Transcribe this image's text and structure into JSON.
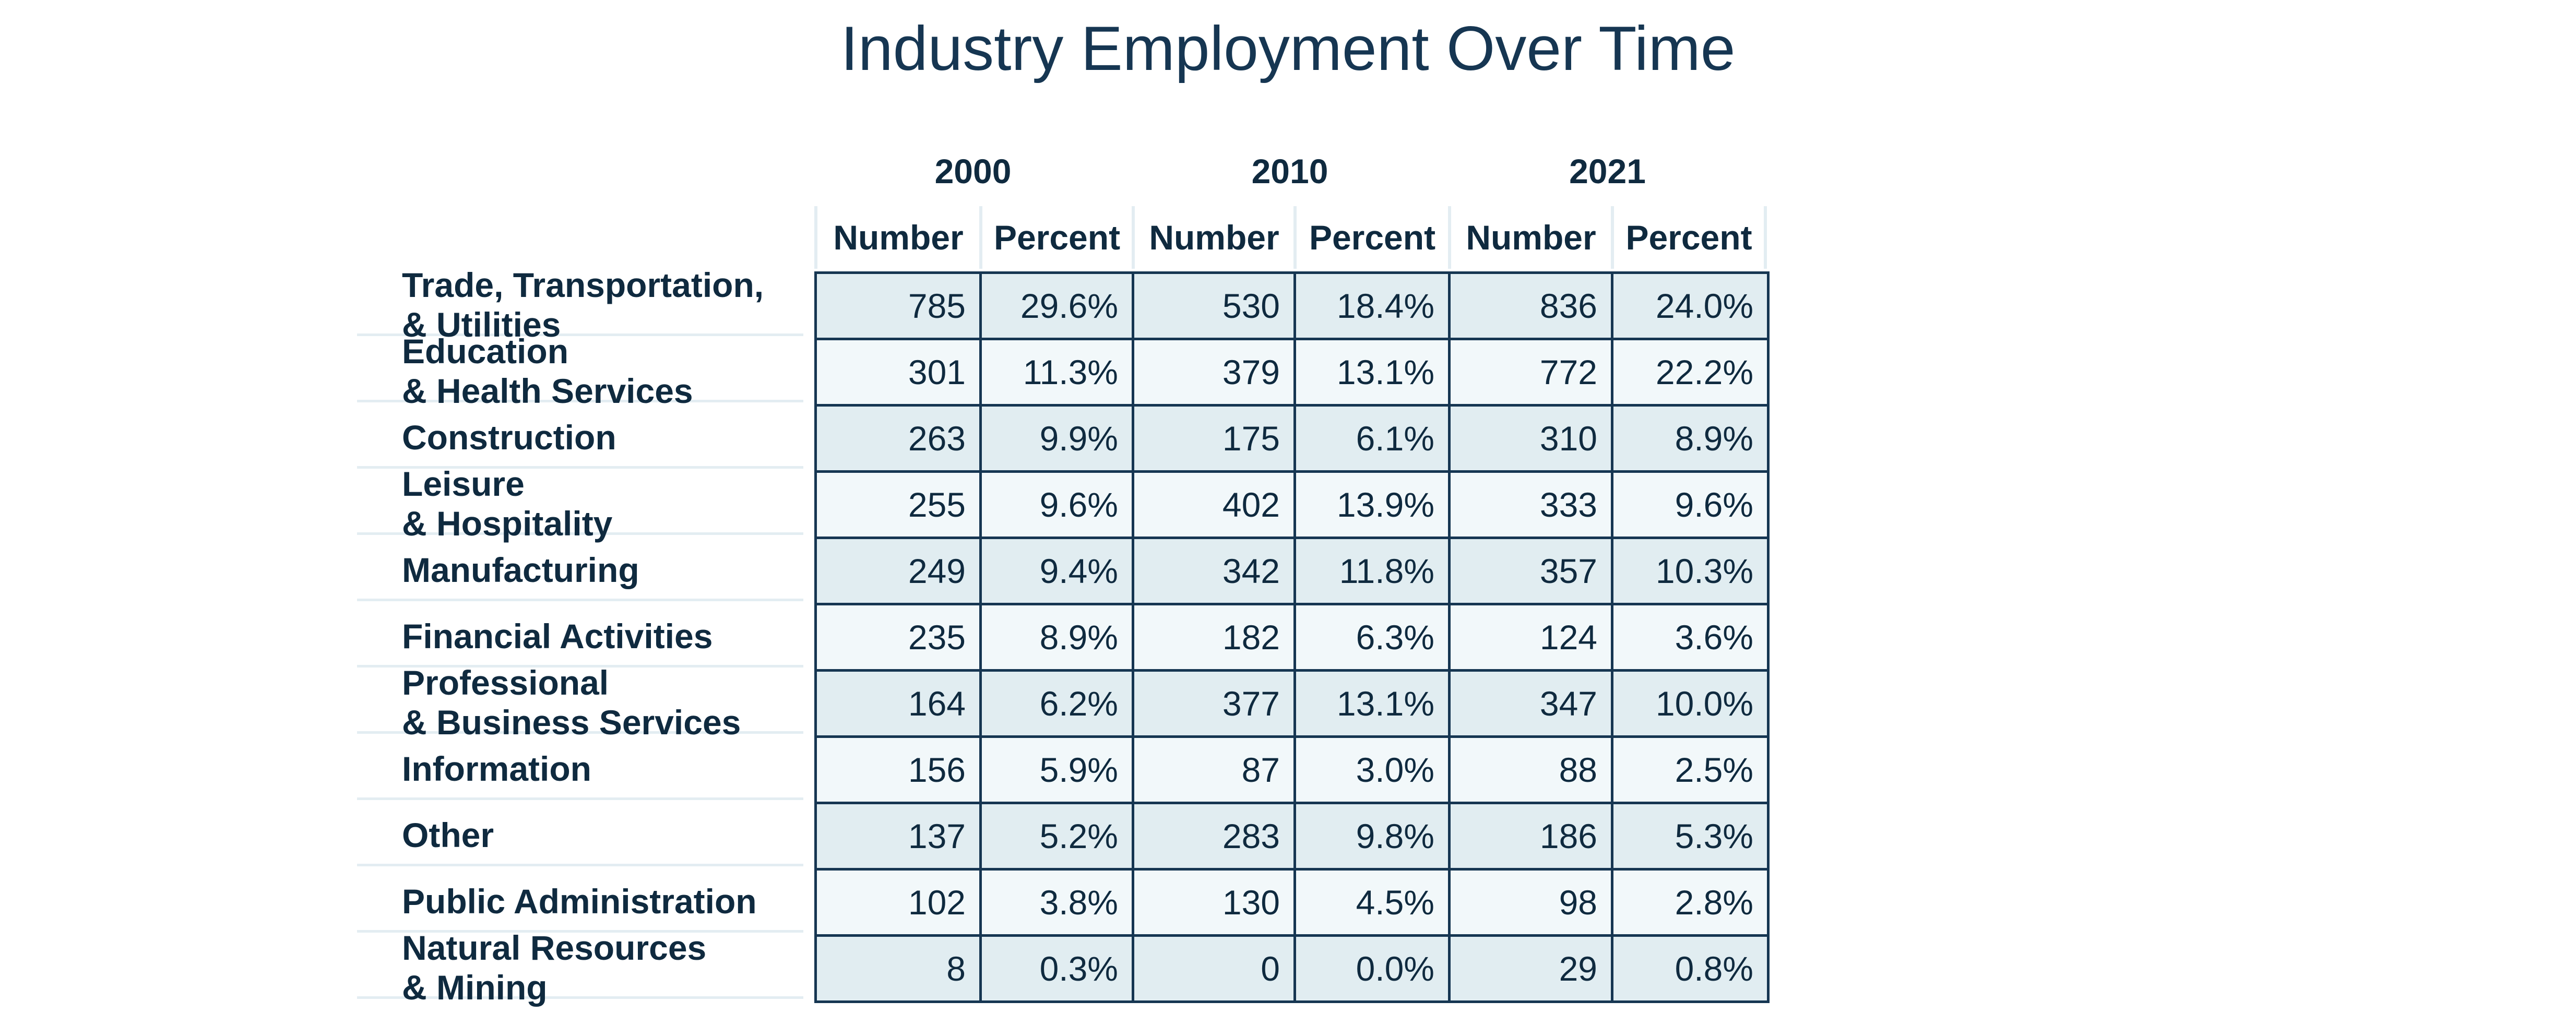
{
  "chart_data": {
    "type": "table",
    "title": "Industry Employment Over Time",
    "years": [
      "2000",
      "2010",
      "2021"
    ],
    "subheaders": [
      "Number",
      "Percent",
      "Number",
      "Percent",
      "Number",
      "Percent"
    ],
    "rows": [
      {
        "category": "Trade, Transportation,\n& Utilities",
        "values": [
          "785",
          "29.6%",
          "530",
          "18.4%",
          "836",
          "24.0%"
        ]
      },
      {
        "category": "Education\n& Health Services",
        "values": [
          "301",
          "11.3%",
          "379",
          "13.1%",
          "772",
          "22.2%"
        ]
      },
      {
        "category": "Construction",
        "values": [
          "263",
          "9.9%",
          "175",
          "6.1%",
          "310",
          "8.9%"
        ]
      },
      {
        "category": "Leisure\n& Hospitality",
        "values": [
          "255",
          "9.6%",
          "402",
          "13.9%",
          "333",
          "9.6%"
        ]
      },
      {
        "category": "Manufacturing",
        "values": [
          "249",
          "9.4%",
          "342",
          "11.8%",
          "357",
          "10.3%"
        ]
      },
      {
        "category": "Financial Activities",
        "values": [
          "235",
          "8.9%",
          "182",
          "6.3%",
          "124",
          "3.6%"
        ]
      },
      {
        "category": "Professional\n& Business Services",
        "values": [
          "164",
          "6.2%",
          "377",
          "13.1%",
          "347",
          "10.0%"
        ]
      },
      {
        "category": "Information",
        "values": [
          "156",
          "5.9%",
          "87",
          "3.0%",
          "88",
          "2.5%"
        ]
      },
      {
        "category": "Other",
        "values": [
          "137",
          "5.2%",
          "283",
          "9.8%",
          "186",
          "5.3%"
        ]
      },
      {
        "category": "Public Administration",
        "values": [
          "102",
          "3.8%",
          "130",
          "4.5%",
          "98",
          "2.8%"
        ]
      },
      {
        "category": "Natural Resources\n& Mining",
        "values": [
          "8",
          "0.3%",
          "0",
          "0.0%",
          "29",
          "0.8%"
        ]
      }
    ]
  }
}
